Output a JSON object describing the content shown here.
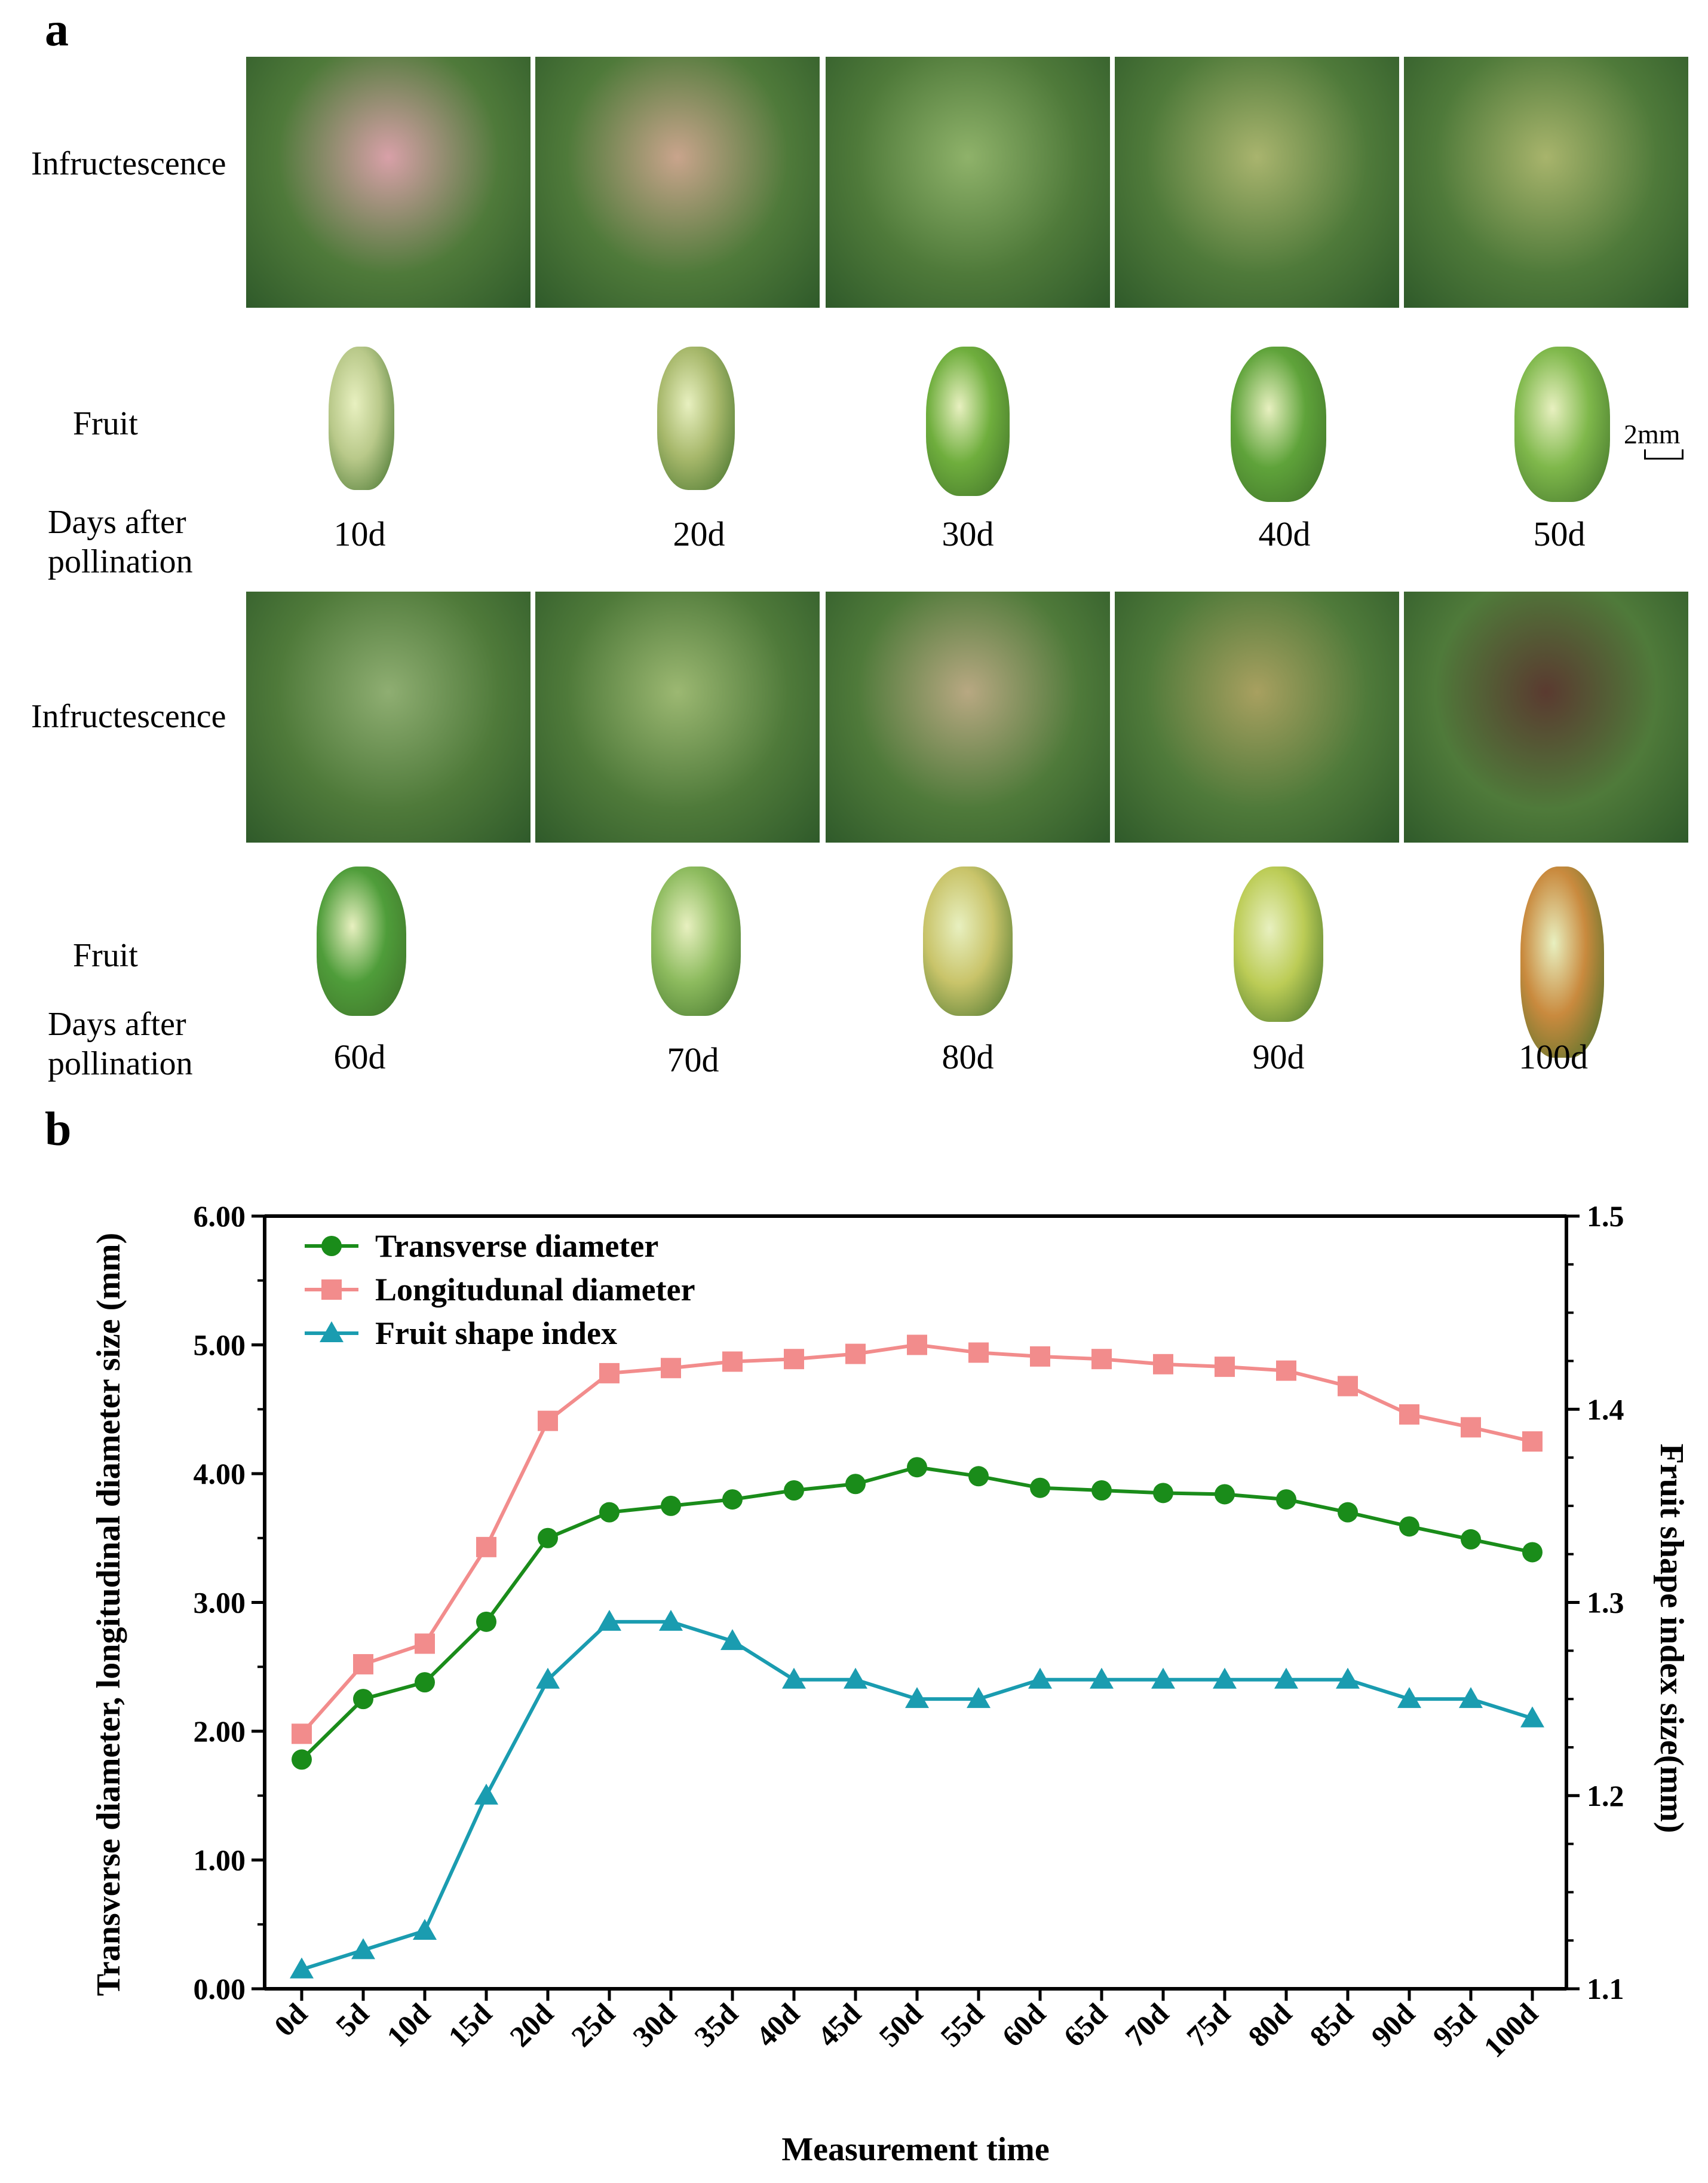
{
  "panel_a": {
    "letter": "a",
    "labels": {
      "infructescence": "Infructescence",
      "fruit": "Fruit",
      "days_line1": "Days after",
      "days_line2": "pollination",
      "scale": "2mm"
    },
    "row1_days": [
      "10d",
      "20d",
      "30d",
      "40d",
      "50d"
    ],
    "row2_days": [
      "60d",
      "70d",
      "80d",
      "90d",
      "100d"
    ],
    "fruit_colors_row1": [
      "#b9c98a",
      "#a7b86b",
      "#6fae3d",
      "#5fa33a",
      "#7fb84b"
    ],
    "fruit_colors_row2": [
      "#4f9d3a",
      "#8dbb5e",
      "#c9c46a",
      "#bccc56",
      "#c98a3e"
    ],
    "photo_colors_row1": [
      "#d8a0a8",
      "#c9a48c",
      "#8fb26a",
      "#a9b46e",
      "#a8b46c"
    ],
    "photo_colors_row2": [
      "#8fae72",
      "#9cb872",
      "#b8a882",
      "#a8a060",
      "#5a3a30"
    ]
  },
  "panel_b": {
    "letter": "b"
  },
  "chart_data": {
    "type": "line",
    "x": [
      "0d",
      "5d",
      "10d",
      "15d",
      "20d",
      "25d",
      "30d",
      "35d",
      "40d",
      "45d",
      "50d",
      "55d",
      "60d",
      "65d",
      "70d",
      "75d",
      "80d",
      "85d",
      "90d",
      "95d",
      "100d"
    ],
    "series": [
      {
        "name": "Transverse diameter",
        "axis": "left",
        "color": "#1a8c1a",
        "marker": "circle",
        "values": [
          1.78,
          2.25,
          2.38,
          2.85,
          3.5,
          3.7,
          3.75,
          3.8,
          3.87,
          3.92,
          4.05,
          3.98,
          3.89,
          3.87,
          3.85,
          3.84,
          3.8,
          3.7,
          3.59,
          3.49,
          3.39
        ]
      },
      {
        "name": "Longitudunal diameter",
        "axis": "left",
        "color": "#f28c8c",
        "marker": "square",
        "values": [
          1.98,
          2.52,
          2.68,
          3.43,
          4.41,
          4.78,
          4.82,
          4.87,
          4.89,
          4.93,
          5.0,
          4.94,
          4.91,
          4.89,
          4.85,
          4.83,
          4.8,
          4.68,
          4.46,
          4.36,
          4.25
        ]
      },
      {
        "name": "Fruit shape index",
        "axis": "right",
        "color": "#1a9cb0",
        "marker": "triangle",
        "values": [
          1.11,
          1.12,
          1.13,
          1.2,
          1.26,
          1.29,
          1.29,
          1.28,
          1.26,
          1.26,
          1.25,
          1.25,
          1.26,
          1.26,
          1.26,
          1.26,
          1.26,
          1.26,
          1.25,
          1.25,
          1.24
        ]
      }
    ],
    "xlabel": "Measurement time",
    "ylabel": "Transverse diameter, longitudinal diameter size (mm)",
    "y2label": "Fruit shape index size(mm)",
    "ylim": [
      0,
      6
    ],
    "y2lim": [
      1.1,
      1.5
    ],
    "yticks": [
      "0.00",
      "1.00",
      "2.00",
      "3.00",
      "4.00",
      "5.00",
      "6.00"
    ],
    "y2ticks": [
      "1.1",
      "1.2",
      "1.3",
      "1.4",
      "1.5"
    ],
    "legend_position": "top-left",
    "grid": false
  }
}
